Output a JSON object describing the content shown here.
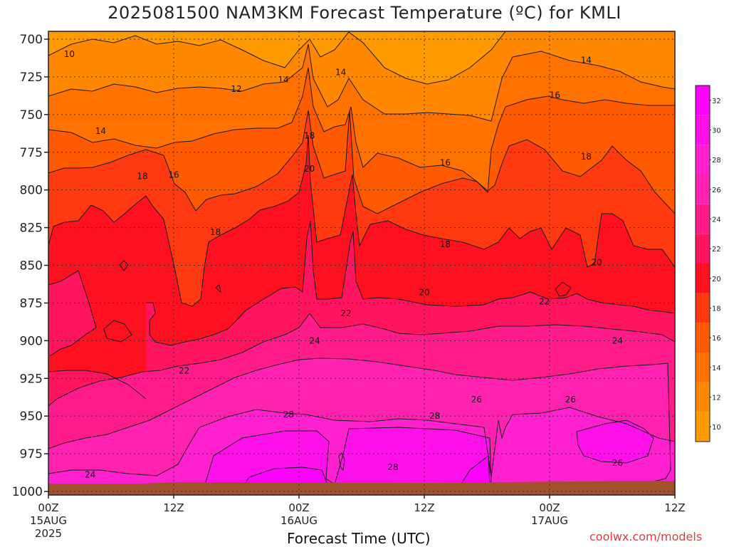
{
  "title": "2025081500 NAM3KM Forecast Temperature (ºC) for KMLI",
  "credit": "coolwx.com/models",
  "colors": {
    "c10": "#ff9a00",
    "c12": "#ff8800",
    "c14": "#ff7200",
    "c16": "#ff5a00",
    "c18": "#ff3a10",
    "c20": "#ff1020",
    "c22": "#ff1460",
    "c24": "#ff1c8a",
    "c26": "#ff22b0",
    "c28": "#ff20d0",
    "c30": "#ff10ea",
    "c32": "#ff00ff",
    "ground": "#a0522d"
  },
  "chart_data": {
    "type": "heatmap",
    "title": "2025081500 NAM3KM Forecast Temperature (ºC) for KMLI",
    "xlabel": "Forecast Time (UTC)",
    "ylabel": "",
    "x_ticks": [
      {
        "label": "00Z",
        "sub1": "15AUG",
        "sub2": "2025",
        "hour": 0
      },
      {
        "label": "12Z",
        "sub1": "",
        "sub2": "",
        "hour": 12
      },
      {
        "label": "00Z",
        "sub1": "16AUG",
        "sub2": "",
        "hour": 24
      },
      {
        "label": "12Z",
        "sub1": "",
        "sub2": "",
        "hour": 36
      },
      {
        "label": "00Z",
        "sub1": "17AUG",
        "sub2": "",
        "hour": 48
      },
      {
        "label": "12Z",
        "sub1": "",
        "sub2": "",
        "hour": 60
      }
    ],
    "xlim_hours": [
      0,
      60
    ],
    "y_ticks": [
      "700",
      "725",
      "750",
      "775",
      "800",
      "825",
      "850",
      "875",
      "900",
      "925",
      "950",
      "975",
      "1000"
    ],
    "ylim_hPa": [
      700,
      1000
    ],
    "y_inverted": true,
    "colorbar": {
      "levels": [
        10,
        12,
        14,
        16,
        18,
        20,
        22,
        24,
        26,
        28,
        30,
        32
      ],
      "labels": [
        "10",
        "12",
        "14",
        "16",
        "18",
        "20",
        "22",
        "24",
        "26",
        "28",
        "30",
        "32"
      ]
    },
    "contour_labels": [
      {
        "text": "10",
        "hour": 2.0,
        "p": 710
      },
      {
        "text": "12",
        "hour": 18.0,
        "p": 733
      },
      {
        "text": "14",
        "hour": 22.5,
        "p": 727
      },
      {
        "text": "14",
        "hour": 28.0,
        "p": 722
      },
      {
        "text": "14",
        "hour": 51.5,
        "p": 714
      },
      {
        "text": "14",
        "hour": 5.0,
        "p": 761
      },
      {
        "text": "16",
        "hour": 48.5,
        "p": 737
      },
      {
        "text": "16",
        "hour": 12.0,
        "p": 790
      },
      {
        "text": "16",
        "hour": 38.0,
        "p": 782
      },
      {
        "text": "18",
        "hour": 25.0,
        "p": 764
      },
      {
        "text": "18",
        "hour": 9.0,
        "p": 791
      },
      {
        "text": "18",
        "hour": 16.0,
        "p": 828
      },
      {
        "text": "18",
        "hour": 38.0,
        "p": 836
      },
      {
        "text": "18",
        "hour": 51.5,
        "p": 778
      },
      {
        "text": "20",
        "hour": 25.0,
        "p": 786
      },
      {
        "text": "20",
        "hour": 36.0,
        "p": 868
      },
      {
        "text": "20",
        "hour": 52.5,
        "p": 848
      },
      {
        "text": "22",
        "hour": 28.5,
        "p": 882
      },
      {
        "text": "22",
        "hour": 47.5,
        "p": 874
      },
      {
        "text": "22",
        "hour": 13.0,
        "p": 920
      },
      {
        "text": "24",
        "hour": 25.5,
        "p": 900
      },
      {
        "text": "24",
        "hour": 54.5,
        "p": 900
      },
      {
        "text": "24",
        "hour": 4.0,
        "p": 989
      },
      {
        "text": "26",
        "hour": 41.0,
        "p": 939
      },
      {
        "text": "26",
        "hour": 50.0,
        "p": 939
      },
      {
        "text": "26",
        "hour": 54.5,
        "p": 981
      },
      {
        "text": "28",
        "hour": 23.0,
        "p": 949
      },
      {
        "text": "28",
        "hour": 37.0,
        "p": 950
      },
      {
        "text": "28",
        "hour": 33.0,
        "p": 984
      }
    ]
  }
}
